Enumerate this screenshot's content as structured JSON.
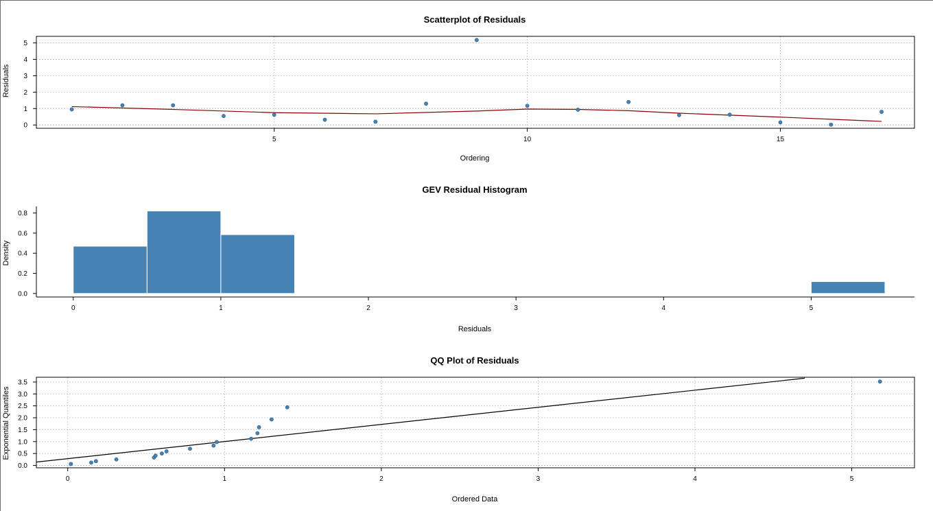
{
  "colors": {
    "point": "#4682B4",
    "bar": "#4682B4",
    "smooth_line": "#8B0000",
    "ref_line": "#000000",
    "grid": "#c8c8c8",
    "axis": "#000000"
  },
  "chart_data": [
    {
      "id": "scatter",
      "type": "scatter",
      "title": "Scatterplot of Residuals",
      "xlabel": "Ordering",
      "ylabel": "Residuals",
      "xlim": [
        0.3,
        17.65
      ],
      "ylim": [
        -0.2,
        5.4
      ],
      "xticks": [
        5,
        10,
        15
      ],
      "yticks": [
        0,
        1,
        2,
        3,
        4,
        5
      ],
      "grid": true,
      "x": [
        1,
        2,
        3,
        4,
        5,
        6,
        7,
        8,
        9,
        10,
        11,
        12,
        13,
        14,
        15,
        16,
        17
      ],
      "y": [
        0.95,
        1.2,
        1.2,
        0.55,
        0.62,
        0.32,
        0.2,
        1.3,
        5.18,
        1.17,
        0.93,
        1.4,
        0.6,
        0.63,
        0.16,
        0.02,
        0.8
      ],
      "smooth": {
        "x": [
          1,
          3,
          5,
          7,
          9,
          10,
          11,
          12,
          13,
          14,
          15,
          16,
          17
        ],
        "y": [
          1.12,
          0.95,
          0.75,
          0.68,
          0.85,
          0.97,
          0.95,
          0.87,
          0.72,
          0.6,
          0.48,
          0.35,
          0.22
        ]
      }
    },
    {
      "id": "histogram",
      "type": "bar",
      "title": "GEV Residual Histogram",
      "xlabel": "Residuals",
      "ylabel": "Density",
      "xlim": [
        -0.25,
        5.7
      ],
      "ylim": [
        -0.035,
        0.865
      ],
      "xticks": [
        0,
        1,
        2,
        3,
        4,
        5
      ],
      "yticks": [
        0.0,
        0.2,
        0.4,
        0.6,
        0.8
      ],
      "ytick_labels": [
        "0.0",
        "0.2",
        "0.4",
        "0.6",
        "0.8"
      ],
      "grid": false,
      "bins": [
        {
          "x0": 0.0,
          "x1": 0.5,
          "density": 0.47
        },
        {
          "x0": 0.5,
          "x1": 1.0,
          "density": 0.82
        },
        {
          "x0": 1.0,
          "x1": 1.5,
          "density": 0.585
        },
        {
          "x0": 5.0,
          "x1": 5.5,
          "density": 0.118
        }
      ]
    },
    {
      "id": "qq",
      "type": "scatter",
      "title": "QQ Plot of Residuals",
      "xlabel": "Ordered Data",
      "ylabel": "Exponential Quantiles",
      "xlim": [
        -0.2,
        5.4
      ],
      "ylim": [
        -0.1,
        3.7
      ],
      "xticks": [
        0,
        1,
        2,
        3,
        4,
        5
      ],
      "yticks": [
        0.0,
        0.5,
        1.0,
        1.5,
        2.0,
        2.5,
        3.0,
        3.5
      ],
      "ytick_labels": [
        "0.0",
        "0.5",
        "1.0",
        "1.5",
        "2.0",
        "2.5",
        "3.0",
        "3.5"
      ],
      "grid": true,
      "x": [
        0.02,
        0.15,
        0.18,
        0.31,
        0.55,
        0.56,
        0.6,
        0.63,
        0.78,
        0.93,
        0.95,
        1.17,
        1.21,
        1.22,
        1.3,
        1.4,
        5.18
      ],
      "y": [
        0.06,
        0.12,
        0.18,
        0.25,
        0.33,
        0.41,
        0.5,
        0.59,
        0.7,
        0.83,
        0.98,
        1.12,
        1.35,
        1.6,
        1.93,
        2.44,
        3.52
      ],
      "ref_line": {
        "x": [
          -0.2,
          4.7
        ],
        "y": [
          0.14,
          3.66
        ]
      }
    }
  ]
}
